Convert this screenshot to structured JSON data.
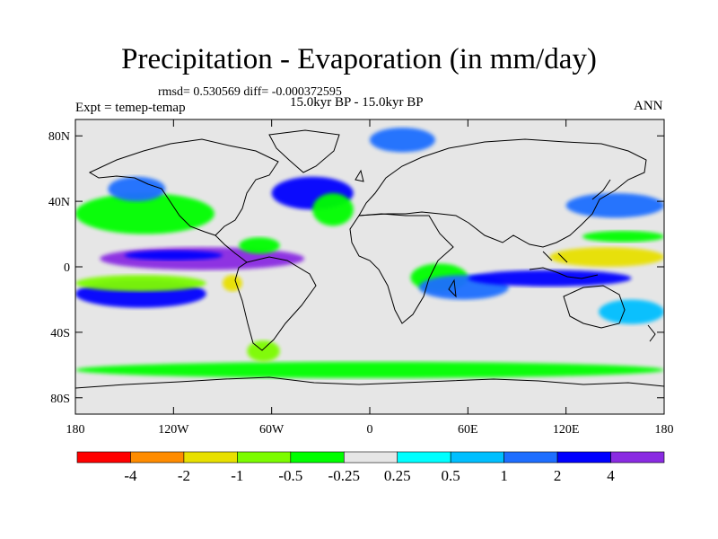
{
  "figure": {
    "title": "Precipitation - Evaporation (in mm/day)",
    "stats": "rmsd= 0.530569  diff= -0.000372595",
    "expt": "Expt = temep-temap",
    "period": "15.0kyr BP - 15.0kyr BP",
    "season": "ANN"
  },
  "axes": {
    "lat_labels": [
      "80N",
      "40N",
      "0",
      "40S",
      "80S"
    ],
    "lat_values": [
      80,
      40,
      0,
      -40,
      -80
    ],
    "lon_labels": [
      "180",
      "120W",
      "60W",
      "0",
      "60E",
      "120E",
      "180"
    ],
    "lon_values": [
      -180,
      -120,
      -60,
      0,
      60,
      120,
      180
    ],
    "lat_range": [
      -90,
      90
    ],
    "lon_range": [
      -180,
      180
    ]
  },
  "colorbar": {
    "labels": [
      "-4",
      "-2",
      "-1",
      "-0.5",
      "-0.25",
      "0.25",
      "0.5",
      "1",
      "2",
      "4"
    ],
    "colors": [
      "#ff0000",
      "#ff8c00",
      "#e8e000",
      "#7cfc00",
      "#00ff00",
      "#e6e6e6",
      "#00ffff",
      "#00bfff",
      "#1e6eff",
      "#0000ff",
      "#8a2be2"
    ]
  },
  "map_colors": {
    "background": "#e6e6e6",
    "coast": "#000000"
  },
  "chart_data": {
    "type": "heatmap",
    "title": "Precipitation - Evaporation (in mm/day)",
    "subtitle": "15.0kyr BP - 15.0kyr BP",
    "xlabel": "",
    "ylabel": "",
    "x_ticks": [
      "180",
      "120W",
      "60W",
      "0",
      "60E",
      "120E",
      "180"
    ],
    "y_ticks": [
      "80N",
      "40N",
      "0",
      "40S",
      "80S"
    ],
    "xlim": [
      -180,
      180
    ],
    "ylim": [
      -90,
      90
    ],
    "contour_levels": [
      -4,
      -2,
      -1,
      -0.5,
      -0.25,
      0.25,
      0.5,
      1,
      2,
      4
    ],
    "regions": [
      {
        "lon": [
          -165,
          -40
        ],
        "lat": [
          -2,
          12
        ],
        "level": 4
      },
      {
        "lon": [
          -150,
          -90
        ],
        "lat": [
          4,
          10
        ],
        "level": 2
      },
      {
        "lon": [
          -180,
          -95
        ],
        "lat": [
          20,
          45
        ],
        "level": -0.5
      },
      {
        "lon": [
          -160,
          -125
        ],
        "lat": [
          40,
          55
        ],
        "level": 1
      },
      {
        "lon": [
          -60,
          -10
        ],
        "lat": [
          35,
          55
        ],
        "level": 2
      },
      {
        "lon": [
          -35,
          -10
        ],
        "lat": [
          25,
          45
        ],
        "level": -0.5
      },
      {
        "lon": [
          -80,
          -55
        ],
        "lat": [
          8,
          18
        ],
        "level": -0.5
      },
      {
        "lon": [
          -180,
          -100
        ],
        "lat": [
          -25,
          -8
        ],
        "level": 2
      },
      {
        "lon": [
          -180,
          -100
        ],
        "lat": [
          -15,
          -5
        ],
        "level": -1
      },
      {
        "lon": [
          -90,
          -78
        ],
        "lat": [
          -15,
          -5
        ],
        "level": -2
      },
      {
        "lon": [
          25,
          60
        ],
        "lat": [
          -15,
          2
        ],
        "level": -0.5
      },
      {
        "lon": [
          30,
          85
        ],
        "lat": [
          -20,
          -5
        ],
        "level": 1
      },
      {
        "lon": [
          60,
          160
        ],
        "lat": [
          -12,
          -2
        ],
        "level": 2
      },
      {
        "lon": [
          110,
          180
        ],
        "lat": [
          0,
          12
        ],
        "level": -2
      },
      {
        "lon": [
          130,
          180
        ],
        "lat": [
          15,
          22
        ],
        "level": -0.5
      },
      {
        "lon": [
          120,
          180
        ],
        "lat": [
          30,
          45
        ],
        "level": 1
      },
      {
        "lon": [
          140,
          180
        ],
        "lat": [
          -35,
          -20
        ],
        "level": 0.5
      },
      {
        "lon": [
          -180,
          180
        ],
        "lat": [
          -68,
          -58
        ],
        "level": -0.5
      },
      {
        "lon": [
          -75,
          -55
        ],
        "lat": [
          -58,
          -45
        ],
        "level": -1
      },
      {
        "lon": [
          0,
          40
        ],
        "lat": [
          70,
          85
        ],
        "level": 1
      }
    ]
  }
}
